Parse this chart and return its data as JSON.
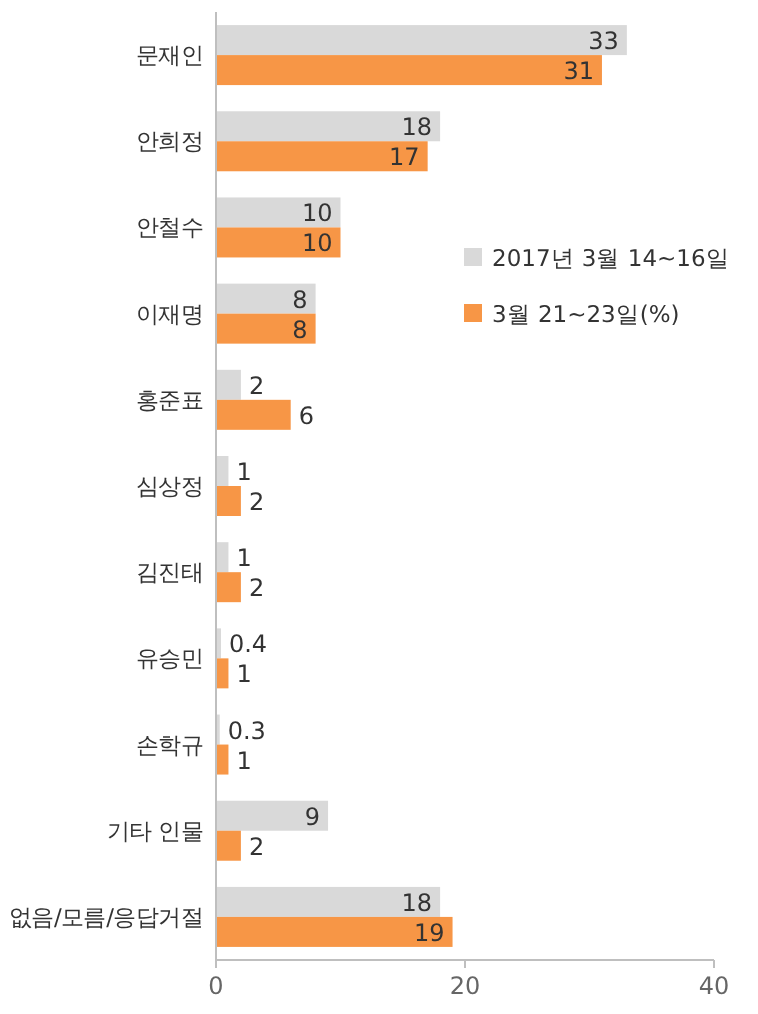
{
  "chart_data": {
    "type": "bar",
    "orientation": "horizontal",
    "categories": [
      "문재인",
      "안희정",
      "안철수",
      "이재명",
      "홍준표",
      "심상정",
      "김진태",
      "유승민",
      "손학규",
      "기타 인물",
      "없음/모름/응답거절"
    ],
    "series": [
      {
        "name": "2017년 3월 14~16일",
        "color": "#d9d9d9",
        "values": [
          33,
          18,
          10,
          8,
          2,
          1,
          1,
          0.4,
          0.3,
          9,
          18
        ]
      },
      {
        "name": "3월 21~23일(%)",
        "color": "#f79646",
        "values": [
          31,
          17,
          10,
          8,
          6,
          2,
          2,
          1,
          1,
          2,
          19
        ]
      }
    ],
    "xlim": [
      0,
      40
    ],
    "xticks": [
      0,
      20,
      40
    ],
    "data_labels": true,
    "legend": "right",
    "grid": false
  }
}
